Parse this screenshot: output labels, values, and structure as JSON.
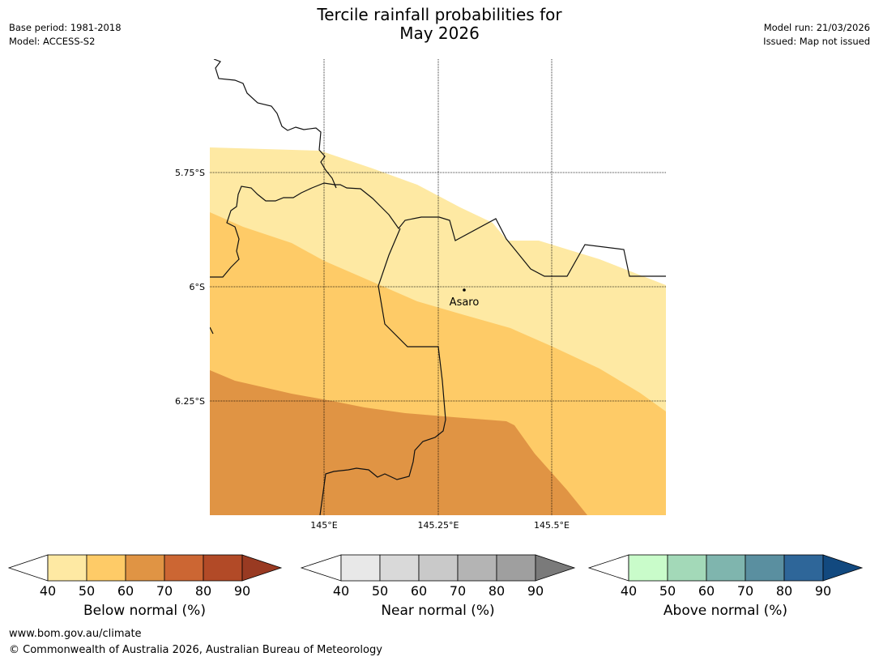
{
  "header": {
    "title_line1": "Tercile rainfall probabilities for",
    "title_line2": "May 2026",
    "base_period": "Base period: 1981-2018",
    "model": "Model: ACCESS-S2",
    "model_run": "Model run: 21/03/2026",
    "issued": "Issued: Map not issued"
  },
  "map": {
    "lat_labels": [
      "5.75°S",
      "6°S",
      "6.25°S"
    ],
    "lon_labels": [
      "145°E",
      "145.25°E",
      "145.5°E"
    ],
    "place": "Asaro"
  },
  "colorbars": [
    {
      "label": "Below normal (%)",
      "ticks": [
        "40",
        "50",
        "60",
        "70",
        "80",
        "90"
      ],
      "colors": [
        "#fee9a3",
        "#fecb67",
        "#e09444",
        "#cc6633",
        "#b24a27"
      ],
      "extend_color": "#993a22"
    },
    {
      "label": "Near normal (%)",
      "ticks": [
        "40",
        "50",
        "60",
        "70",
        "80",
        "90"
      ],
      "colors": [
        "#e8e8e8",
        "#d9d9d9",
        "#c9c9c9",
        "#b4b4b4",
        "#9f9f9f"
      ],
      "extend_color": "#7a7a7a"
    },
    {
      "label": "Above normal (%)",
      "ticks": [
        "40",
        "50",
        "60",
        "70",
        "80",
        "90"
      ],
      "colors": [
        "#c9fcca",
        "#a3d9b8",
        "#7fb5ae",
        "#5a8fa0",
        "#2e6699"
      ],
      "extend_color": "#12497f"
    }
  ],
  "footer": {
    "url": "www.bom.gov.au/climate",
    "copyright": "© Commonwealth of Australia 2026, Australian Bureau of Meteorology"
  }
}
